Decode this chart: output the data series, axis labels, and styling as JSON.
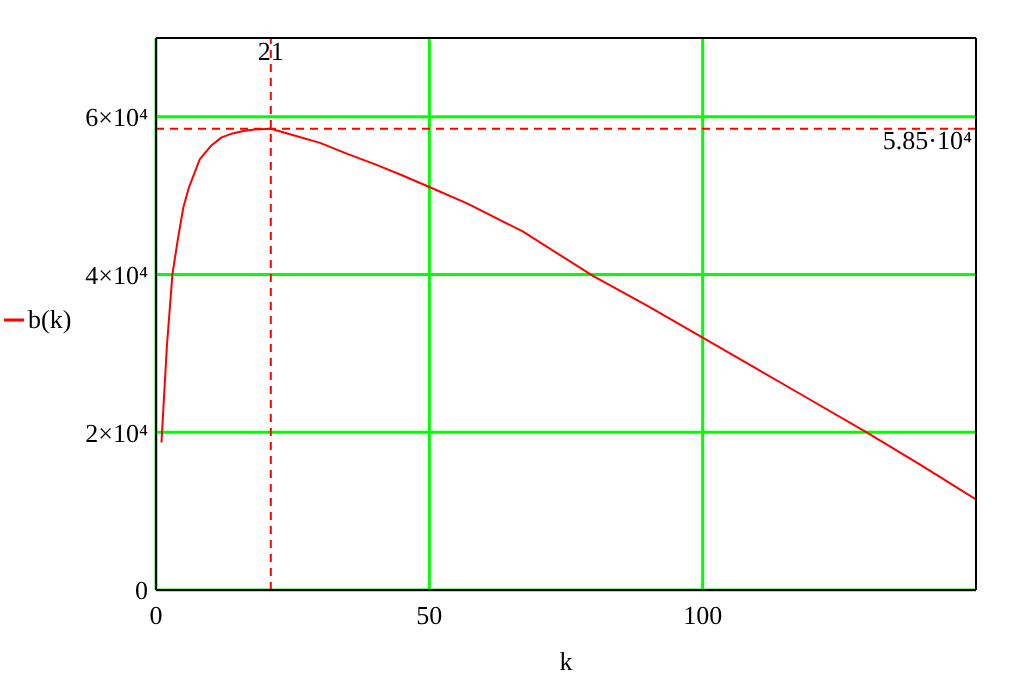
{
  "chart_data": {
    "type": "line",
    "xlabel": "k",
    "x": [
      1,
      2,
      3,
      4,
      5,
      6,
      8,
      10,
      12,
      14,
      16,
      18,
      21,
      25,
      30,
      35,
      40,
      45,
      50,
      57,
      67,
      80,
      90,
      100,
      110,
      120,
      130,
      140,
      150
    ],
    "series": [
      {
        "name": "b(k)",
        "color": "#ff0000",
        "values": [
          18700,
          31000,
          40000,
          44500,
          48500,
          51000,
          54600,
          56300,
          57400,
          57900,
          58200,
          58400,
          58500,
          57700,
          56700,
          55300,
          54000,
          52600,
          51100,
          49000,
          45500,
          39800,
          36000,
          32000,
          28000,
          24000,
          20000,
          15800,
          11500
        ]
      }
    ],
    "xlim": [
      0,
      150
    ],
    "xticks": [
      0,
      50,
      100
    ],
    "ylim": [
      0,
      70000
    ],
    "yticks": [
      0,
      {
        "value": 20000,
        "label": "2×10⁴"
      },
      {
        "value": 40000,
        "label": "4×10⁴"
      },
      {
        "value": 60000,
        "label": "6×10⁴"
      }
    ],
    "ref_lines": [
      {
        "axis": "x",
        "value": 21,
        "label": "21",
        "color": "#ff0000",
        "line_style": "dashed"
      },
      {
        "axis": "y",
        "value": 58500,
        "label": "5.85·10⁴",
        "color": "#ff0000",
        "line_style": "dashed"
      }
    ],
    "grid": true,
    "legend": "left",
    "marker": "none",
    "line_style": "solid"
  }
}
